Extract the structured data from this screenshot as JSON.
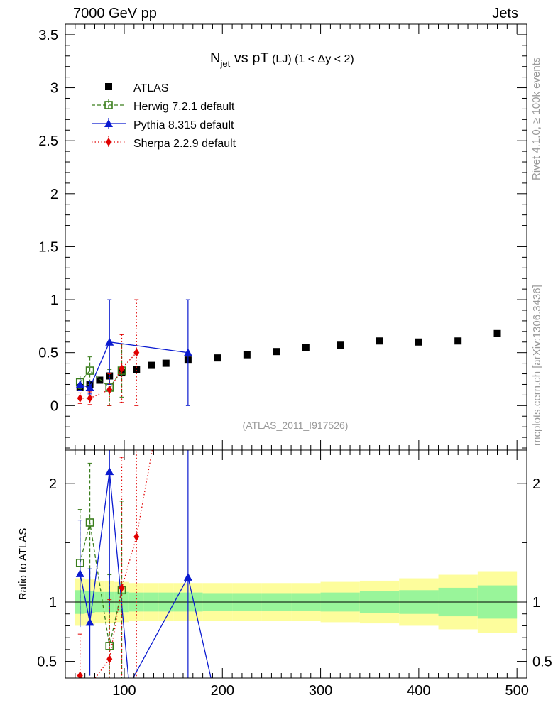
{
  "header": {
    "left": "7000 GeV pp",
    "right": "Jets"
  },
  "side_labels": {
    "top": "Rivet 4.1.0, ≥ 100k events",
    "bottom": "mcplots.cern.ch [arXiv:1306.3436]"
  },
  "watermark": "(ATLAS_2011_I917526)",
  "colors": {
    "atlas": "#000000",
    "herwig": "#3a7d1c",
    "pythia": "#0a1ad0",
    "sherpa": "#e00000",
    "band_inner": "#99f59a",
    "band_outer": "#fdfd9c"
  },
  "chart_data": [
    {
      "type": "scatter",
      "title": "N_jet vs pT (LJ) (1 < Δy < 2)",
      "title_parts": {
        "main": "N",
        "sub": "jet",
        "mid": " vs pT",
        "small": "(LJ)",
        "cond": "(1 < Δy < 2)"
      },
      "xlabel": "",
      "ylabel": "",
      "xlim": [
        40,
        510
      ],
      "ylim": [
        -0.42,
        3.6
      ],
      "yticks": [
        "0",
        "0.5",
        "1",
        "1.5",
        "2",
        "2.5",
        "3",
        "3.5"
      ],
      "ytick_values": [
        0,
        0.5,
        1,
        1.5,
        2,
        2.5,
        3,
        3.5
      ],
      "legend_position": "top-left",
      "series": [
        {
          "name": "ATLAS",
          "marker": "square",
          "x": [
            55,
            65,
            75,
            85,
            97.5,
            112.5,
            127.5,
            142.5,
            165,
            195,
            225,
            255,
            285,
            320,
            360,
            400,
            440,
            480
          ],
          "y": [
            0.17,
            0.2,
            0.24,
            0.28,
            0.31,
            0.34,
            0.38,
            0.4,
            0.43,
            0.45,
            0.48,
            0.51,
            0.55,
            0.57,
            0.61,
            0.6,
            0.61,
            0.68
          ]
        },
        {
          "name": "Herwig 7.2.1 default",
          "marker": "open-square",
          "line": "dashed",
          "x": [
            55,
            65,
            85,
            97.5
          ],
          "y": [
            0.22,
            0.33,
            0.17,
            0.33
          ],
          "err": [
            0.06,
            0.13,
            0.17,
            0.25
          ]
        },
        {
          "name": "Pythia 8.315 default",
          "marker": "triangle",
          "line": "solid",
          "x": [
            55,
            65,
            85,
            165
          ],
          "y": [
            0.2,
            0.17,
            0.6,
            0.5
          ],
          "err": [
            0.06,
            0.06,
            0.4,
            0.5
          ]
        },
        {
          "name": "Sherpa 2.2.9 default",
          "marker": "diamond",
          "line": "dotted",
          "x": [
            55,
            65,
            85,
            97.5,
            112.5
          ],
          "y": [
            0.07,
            0.07,
            0.15,
            0.35,
            0.5
          ],
          "err": [
            0.05,
            0.06,
            0.15,
            0.32,
            0.5
          ]
        }
      ]
    },
    {
      "type": "line",
      "title": "",
      "xlabel": "",
      "ylabel": "Ratio to ATLAS",
      "xlim": [
        40,
        510
      ],
      "ylim": [
        0.36,
        2.28
      ],
      "xticks": [
        "100",
        "200",
        "300",
        "400",
        "500"
      ],
      "xtick_values": [
        100,
        200,
        300,
        400,
        500
      ],
      "yticks": [
        "0.5",
        "1",
        "2"
      ],
      "ytick_values": [
        0.5,
        1,
        2
      ],
      "reference_line": 1,
      "band": {
        "x_edges": [
          50,
          60,
          70,
          80,
          90,
          105,
          120,
          135,
          150,
          180,
          210,
          240,
          270,
          300,
          340,
          380,
          420,
          460,
          500
        ],
        "inner": [
          0.1,
          0.09,
          0.085,
          0.085,
          0.085,
          0.08,
          0.08,
          0.08,
          0.08,
          0.075,
          0.075,
          0.075,
          0.075,
          0.08,
          0.09,
          0.1,
          0.12,
          0.14
        ],
        "outer": [
          0.2,
          0.19,
          0.18,
          0.18,
          0.17,
          0.16,
          0.16,
          0.16,
          0.16,
          0.16,
          0.16,
          0.16,
          0.16,
          0.17,
          0.18,
          0.2,
          0.23,
          0.26
        ]
      },
      "series": [
        {
          "name": "Herwig 7.2.1 default",
          "x": [
            55,
            65,
            85,
            97.5
          ],
          "y": [
            1.33,
            1.67,
            0.63,
            1.1
          ],
          "err": [
            0.45,
            0.5,
            0.6,
            0.75
          ]
        },
        {
          "name": "Pythia 8.315 default",
          "x": [
            55,
            65,
            85,
            105,
            165,
            190
          ],
          "y": [
            1.24,
            0.83,
            2.1,
            0.3,
            1.21,
            0.3
          ],
          "err": [
            0.45,
            0.45,
            1.2,
            0,
            1.1,
            0
          ]
        },
        {
          "name": "Sherpa 2.2.9 default",
          "x": [
            55,
            65,
            85,
            97.5,
            112.5,
            130
          ],
          "y": [
            0.38,
            0.3,
            0.52,
            1.12,
            1.55,
            2.35
          ],
          "err": [
            0.35,
            0,
            0.5,
            1.1,
            1.5,
            0
          ]
        }
      ]
    }
  ]
}
